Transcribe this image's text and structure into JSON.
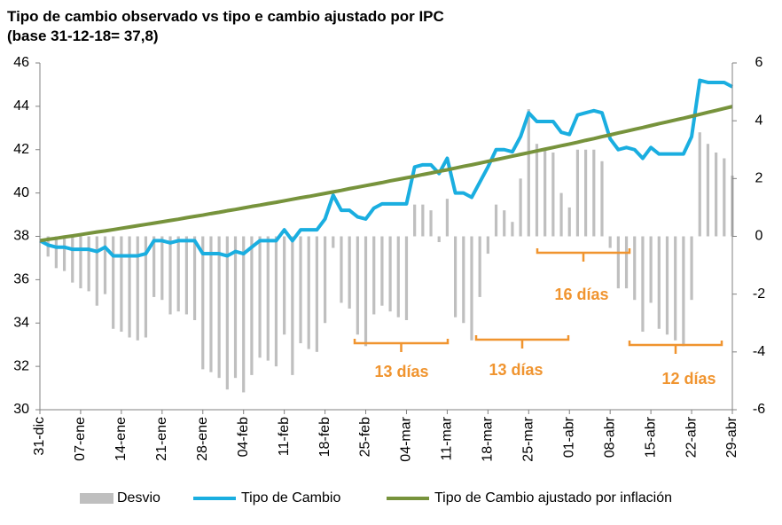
{
  "chart_data": {
    "type": "combo",
    "title": "Tipo de cambio observado vs tipo e cambio ajustado por IPC",
    "subtitle": "(base 31-12-18= 37,8)",
    "categories": [
      "31-dic",
      null,
      null,
      null,
      null,
      "07-ene",
      null,
      null,
      null,
      null,
      "14-ene",
      null,
      null,
      null,
      null,
      "21-ene",
      null,
      null,
      null,
      null,
      "28-ene",
      null,
      null,
      null,
      null,
      "04-feb",
      null,
      null,
      null,
      null,
      "11-feb",
      null,
      null,
      null,
      null,
      "18-feb",
      null,
      null,
      null,
      null,
      "25-feb",
      null,
      null,
      null,
      null,
      "04-mar",
      null,
      null,
      null,
      null,
      "11-mar",
      null,
      null,
      null,
      null,
      "18-mar",
      null,
      null,
      null,
      null,
      "25-mar",
      null,
      null,
      null,
      null,
      "01-abr",
      null,
      null,
      null,
      null,
      "08-abr",
      null,
      null,
      null,
      null,
      "15-abr",
      null,
      null,
      null,
      null,
      "22-abr",
      null,
      null,
      null,
      null,
      "29-abr"
    ],
    "series": [
      {
        "name": "Desvio",
        "type": "bar",
        "axis": "y2",
        "color": "#bfbfbf",
        "values": [
          0.0,
          -0.7,
          -1.1,
          -1.2,
          -1.6,
          -1.8,
          -1.9,
          -2.4,
          -2.0,
          -3.2,
          -3.3,
          -3.5,
          -3.6,
          -3.5,
          -2.1,
          -2.2,
          -2.7,
          -2.6,
          -2.7,
          -2.9,
          -4.6,
          -4.7,
          -4.9,
          -5.3,
          -4.9,
          -5.4,
          -4.8,
          -4.2,
          -4.3,
          -4.5,
          -3.4,
          -4.8,
          -3.7,
          -3.9,
          -4.0,
          -3.0,
          -0.4,
          -2.3,
          -2.5,
          -3.4,
          -3.8,
          -2.7,
          -2.4,
          -2.6,
          -2.8,
          -2.9,
          1.1,
          1.1,
          0.9,
          -0.2,
          1.3,
          -2.8,
          -3.0,
          -3.6,
          -2.1,
          -0.6,
          1.1,
          0.9,
          0.5,
          2.0,
          4.4,
          3.2,
          3.0,
          2.9,
          1.5,
          1.0,
          3.0,
          3.0,
          3.0,
          2.6,
          -0.4,
          -1.8,
          -1.8,
          -2.2,
          -3.3,
          -2.3,
          -3.2,
          -3.4,
          -3.6,
          -3.8,
          -2.2,
          3.6,
          3.2,
          2.9,
          2.7,
          2.1
        ]
      },
      {
        "name": "Tipo de Cambio",
        "type": "line",
        "color": "#1aaee0",
        "values": [
          37.8,
          37.6,
          37.5,
          37.5,
          37.4,
          37.4,
          37.4,
          37.3,
          37.5,
          37.1,
          37.1,
          37.1,
          37.1,
          37.2,
          37.8,
          37.8,
          37.7,
          37.8,
          37.8,
          37.8,
          37.2,
          37.2,
          37.2,
          37.1,
          37.3,
          37.2,
          37.5,
          37.8,
          37.8,
          37.8,
          38.3,
          37.8,
          38.3,
          38.3,
          38.3,
          38.8,
          39.9,
          39.2,
          39.2,
          38.9,
          38.8,
          39.3,
          39.5,
          39.5,
          39.5,
          39.5,
          41.2,
          41.3,
          41.3,
          40.9,
          41.6,
          40.0,
          40.0,
          39.8,
          40.5,
          41.2,
          42.0,
          42.0,
          41.9,
          42.6,
          43.7,
          43.3,
          43.3,
          43.3,
          42.8,
          42.7,
          43.6,
          43.7,
          43.8,
          43.7,
          42.5,
          42.0,
          42.1,
          42.0,
          41.6,
          42.1,
          41.8,
          41.8,
          41.8,
          41.8,
          42.6,
          45.2,
          45.1,
          45.1,
          45.1,
          44.9
        ]
      },
      {
        "name": "Tipo de Cambio ajustado por inflación",
        "type": "line",
        "color": "#77933c",
        "values": [
          37.8,
          37.86,
          37.91,
          37.97,
          38.02,
          38.08,
          38.14,
          38.2,
          38.25,
          38.31,
          38.37,
          38.43,
          38.49,
          38.55,
          38.61,
          38.67,
          38.73,
          38.79,
          38.86,
          38.92,
          38.98,
          39.05,
          39.11,
          39.18,
          39.24,
          39.31,
          39.38,
          39.44,
          39.51,
          39.57,
          39.64,
          39.71,
          39.78,
          39.84,
          39.91,
          39.98,
          40.05,
          40.12,
          40.2,
          40.27,
          40.34,
          40.41,
          40.48,
          40.56,
          40.63,
          40.7,
          40.77,
          40.85,
          40.92,
          41.0,
          41.07,
          41.15,
          41.23,
          41.3,
          41.38,
          41.46,
          41.54,
          41.62,
          41.7,
          41.78,
          41.86,
          41.94,
          42.02,
          42.1,
          42.18,
          42.26,
          42.34,
          42.43,
          42.51,
          42.6,
          42.68,
          42.77,
          42.85,
          42.94,
          43.02,
          43.11,
          43.2,
          43.28,
          43.37,
          43.45,
          43.54,
          43.63,
          43.72,
          43.81,
          43.9,
          43.99
        ]
      }
    ],
    "ylim": [
      30,
      46
    ],
    "yticks": [
      30,
      32,
      34,
      36,
      38,
      40,
      42,
      44,
      46
    ],
    "y2lim": [
      -6,
      6
    ],
    "y2ticks": [
      -6,
      -4,
      -2,
      0,
      2,
      4,
      6
    ],
    "grid": false,
    "legend": "bottom",
    "annotations": [
      "13 días",
      "13 días",
      "16 días",
      "12 días"
    ]
  }
}
